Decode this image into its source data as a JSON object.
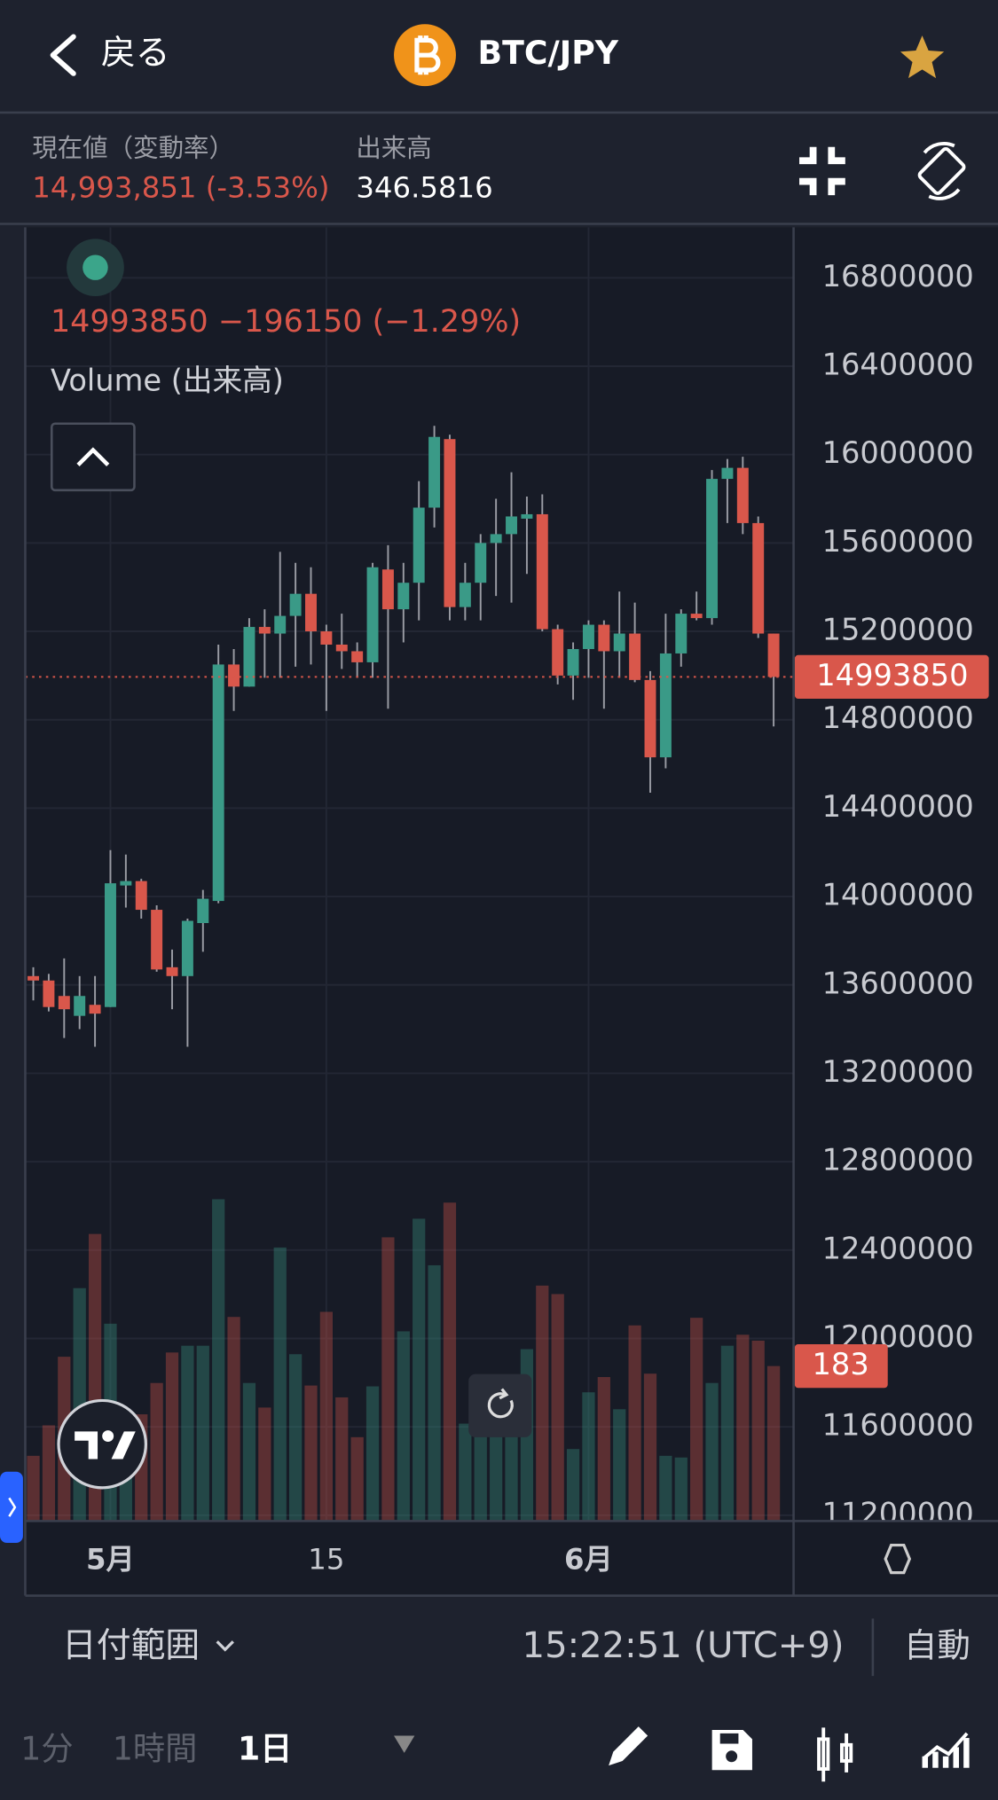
{
  "header": {
    "back": "戻る",
    "title": "BTC/JPY"
  },
  "info": {
    "price_label": "現在値（変動率）",
    "price": "14,993,851 (-3.53%)",
    "volume_label": "出来高",
    "volume": "346.5816"
  },
  "chart_data": {
    "type": "candlestick",
    "legend": "14993850 −196150 (−1.29%)",
    "volume_title": "Volume (出来高)",
    "categories": [
      null,
      null,
      null,
      null,
      null,
      "5月",
      null,
      null,
      null,
      null,
      null,
      null,
      null,
      null,
      null,
      null,
      null,
      null,
      null,
      "15",
      null,
      null,
      null,
      null,
      null,
      null,
      null,
      null,
      null,
      null,
      null,
      null,
      null,
      null,
      null,
      null,
      "6月",
      null,
      null,
      null,
      null,
      null,
      null,
      null,
      null,
      null,
      null,
      null,
      null
    ],
    "open": [
      13640000,
      13620000,
      13550000,
      13460000,
      13510000,
      13500000,
      14050000,
      14070000,
      13940000,
      13680000,
      13640000,
      13880000,
      13980000,
      15050000,
      14950000,
      15220000,
      15190000,
      15270000,
      15370000,
      15200000,
      15140000,
      15110000,
      15060000,
      15480000,
      15300000,
      15420000,
      15760000,
      16070000,
      15310000,
      15420000,
      15600000,
      15640000,
      15710000,
      15730000,
      15210000,
      15000000,
      15120000,
      15230000,
      15110000,
      15190000,
      14980000,
      14630000,
      15100000,
      15280000,
      15260000,
      15890000,
      15940000,
      15690000,
      15190000
    ],
    "high": [
      13680000,
      13650000,
      13720000,
      13640000,
      13640000,
      14210000,
      14190000,
      14080000,
      13960000,
      13760000,
      13900000,
      14030000,
      15140000,
      15120000,
      15260000,
      15300000,
      15560000,
      15510000,
      15490000,
      15230000,
      15280000,
      15150000,
      15510000,
      15590000,
      15510000,
      15880000,
      16130000,
      16090000,
      15510000,
      15640000,
      15800000,
      15920000,
      15810000,
      15820000,
      15230000,
      15150000,
      15250000,
      15250000,
      15380000,
      15330000,
      15020000,
      15280000,
      15300000,
      15380000,
      15930000,
      15980000,
      15990000,
      15720000,
      15190000
    ],
    "low": [
      13530000,
      13480000,
      13360000,
      13400000,
      13320000,
      13500000,
      13950000,
      13900000,
      13660000,
      13490000,
      13320000,
      13750000,
      13970000,
      14840000,
      14950000,
      14990000,
      14990000,
      15040000,
      15050000,
      14840000,
      15030000,
      14990000,
      14990000,
      14850000,
      15150000,
      15250000,
      15670000,
      15250000,
      15250000,
      15250000,
      15360000,
      15330000,
      15460000,
      15200000,
      14960000,
      14890000,
      14990000,
      14850000,
      14990000,
      14970000,
      14470000,
      14580000,
      15040000,
      15250000,
      15230000,
      15690000,
      15640000,
      15170000,
      14770000
    ],
    "close": [
      13620000,
      13500000,
      13490000,
      13550000,
      13470000,
      14060000,
      14070000,
      13940000,
      13670000,
      13640000,
      13890000,
      13990000,
      15050000,
      14950000,
      15220000,
      15190000,
      15270000,
      15370000,
      15200000,
      15140000,
      15110000,
      15060000,
      15490000,
      15300000,
      15420000,
      15760000,
      16080000,
      15310000,
      15420000,
      15600000,
      15640000,
      15720000,
      15730000,
      15210000,
      15000000,
      15120000,
      15230000,
      15110000,
      15190000,
      14980000,
      14630000,
      15100000,
      15280000,
      15260000,
      15890000,
      15940000,
      15690000,
      15190000,
      14993850
    ],
    "volume": [
      77,
      113,
      194,
      275,
      339,
      233,
      99,
      126,
      163,
      199,
      207,
      207,
      380,
      241,
      163,
      134,
      323,
      197,
      160,
      247,
      146,
      99,
      159,
      335,
      224,
      357,
      302,
      376,
      115,
      129,
      156,
      170,
      203,
      278,
      268,
      85,
      152,
      170,
      132,
      231,
      174,
      77,
      75,
      240,
      163,
      207,
      220,
      213,
      183
    ],
    "up_color": "#3a9a87",
    "down_color": "#d9574b",
    "ylim": [
      11174000,
      17018000
    ],
    "yticks": [
      11200000,
      11600000,
      12000000,
      12400000,
      12800000,
      13200000,
      13600000,
      14000000,
      14400000,
      14800000,
      15200000,
      15600000,
      16000000,
      16400000,
      16800000
    ],
    "volume_ylim": [
      0,
      1525
    ],
    "grid": true
  },
  "footer": {
    "range": "日付範囲",
    "time": "15:22:51 (UTC+9)",
    "scale": "自動"
  },
  "toolbar": {
    "intervals": [
      "1分",
      "1時間",
      "1日"
    ]
  }
}
